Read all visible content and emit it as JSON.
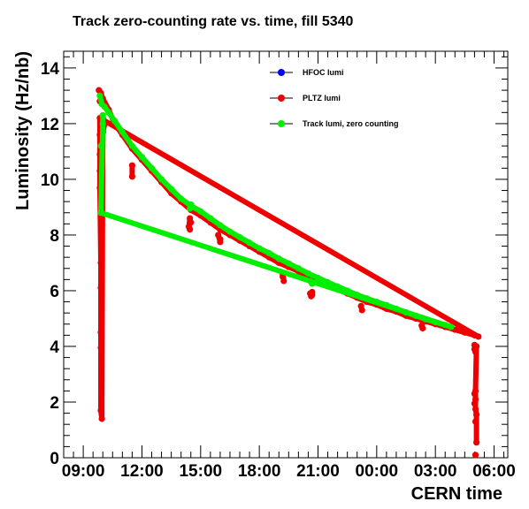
{
  "chart_data": {
    "type": "scatter",
    "title": "Track zero-counting rate vs. time, fill 5340",
    "xlabel": "CERN time",
    "ylabel": "Luminosity (Hz/nb)",
    "x_unit": "hours",
    "xlim": [
      8.0,
      30.7
    ],
    "ylim": [
      0,
      14.6
    ],
    "x_ticks": [
      {
        "value": 9,
        "label": "09:00"
      },
      {
        "value": 12,
        "label": "12:00"
      },
      {
        "value": 15,
        "label": "15:00"
      },
      {
        "value": 18,
        "label": "18:00"
      },
      {
        "value": 21,
        "label": "21:00"
      },
      {
        "value": 24,
        "label": "00:00"
      },
      {
        "value": 27,
        "label": "03:00"
      },
      {
        "value": 30,
        "label": "06:00"
      }
    ],
    "y_ticks": [
      {
        "value": 0,
        "label": "0"
      },
      {
        "value": 2,
        "label": "2"
      },
      {
        "value": 4,
        "label": "4"
      },
      {
        "value": 6,
        "label": "6"
      },
      {
        "value": 8,
        "label": "8"
      },
      {
        "value": 10,
        "label": "10"
      },
      {
        "value": 12,
        "label": "12"
      },
      {
        "value": 14,
        "label": "14"
      }
    ],
    "legend": "top-right",
    "series": [
      {
        "name": "HFOC lumi",
        "color": "#0000ff",
        "points": []
      },
      {
        "name": "PLTZ lumi",
        "color": "#ee0000",
        "points": [
          [
            9.8,
            13.2
          ],
          [
            9.9,
            13.1
          ],
          [
            10.0,
            12.9
          ],
          [
            10.3,
            12.5
          ],
          [
            10.6,
            12.0
          ],
          [
            11.0,
            11.6
          ],
          [
            11.5,
            11.1
          ],
          [
            12.0,
            10.7
          ],
          [
            12.5,
            10.3
          ],
          [
            13.0,
            9.9
          ],
          [
            13.5,
            9.5
          ],
          [
            14.0,
            9.2
          ],
          [
            14.5,
            8.9
          ],
          [
            15.0,
            8.7
          ],
          [
            15.5,
            8.45
          ],
          [
            16.0,
            8.2
          ],
          [
            16.5,
            8.0
          ],
          [
            17.0,
            7.8
          ],
          [
            17.5,
            7.6
          ],
          [
            18.0,
            7.4
          ],
          [
            18.5,
            7.2
          ],
          [
            19.0,
            7.0
          ],
          [
            19.5,
            6.85
          ],
          [
            20.0,
            6.7
          ],
          [
            20.5,
            6.5
          ],
          [
            21.0,
            6.35
          ],
          [
            21.5,
            6.2
          ],
          [
            22.0,
            6.05
          ],
          [
            22.5,
            5.9
          ],
          [
            23.0,
            5.75
          ],
          [
            23.5,
            5.6
          ],
          [
            24.0,
            5.5
          ],
          [
            24.5,
            5.35
          ],
          [
            25.0,
            5.25
          ],
          [
            25.5,
            5.1
          ],
          [
            26.0,
            5.0
          ],
          [
            26.5,
            4.9
          ],
          [
            27.0,
            4.8
          ],
          [
            27.5,
            4.7
          ],
          [
            28.0,
            4.6
          ],
          [
            28.5,
            4.5
          ],
          [
            29.0,
            4.4
          ],
          [
            29.2,
            4.35
          ],
          [
            9.85,
            12.8
          ],
          [
            9.85,
            12.2
          ],
          [
            9.85,
            11.6
          ],
          [
            9.85,
            10.9
          ],
          [
            9.85,
            10.3
          ],
          [
            9.85,
            9.7
          ],
          [
            9.9,
            7.0
          ],
          [
            9.9,
            6.1
          ],
          [
            9.9,
            4.5
          ],
          [
            9.9,
            3.95
          ],
          [
            9.9,
            1.7
          ],
          [
            9.95,
            1.4
          ],
          [
            10.0,
            12.2
          ],
          [
            10.0,
            11.7
          ],
          [
            10.1,
            12.0
          ],
          [
            11.5,
            10.1
          ],
          [
            11.5,
            10.5
          ],
          [
            14.4,
            8.3
          ],
          [
            14.45,
            8.6
          ],
          [
            14.5,
            8.45
          ],
          [
            14.45,
            8.2
          ],
          [
            15.9,
            8.0
          ],
          [
            16.0,
            7.75
          ],
          [
            16.0,
            7.85
          ],
          [
            19.2,
            6.6
          ],
          [
            19.25,
            6.35
          ],
          [
            19.2,
            6.5
          ],
          [
            20.6,
            5.9
          ],
          [
            20.65,
            5.8
          ],
          [
            20.7,
            5.95
          ],
          [
            20.7,
            5.85
          ],
          [
            23.2,
            5.45
          ],
          [
            23.25,
            5.3
          ],
          [
            26.3,
            4.75
          ],
          [
            26.35,
            4.65
          ],
          [
            29.0,
            3.9
          ],
          [
            29.05,
            3.8
          ],
          [
            29.1,
            4.0
          ],
          [
            29.0,
            4.05
          ],
          [
            29.05,
            2.4
          ],
          [
            29.0,
            2.3
          ],
          [
            29.05,
            2.1
          ],
          [
            29.0,
            1.95
          ],
          [
            29.05,
            1.75
          ],
          [
            29.1,
            1.55
          ],
          [
            29.05,
            1.3
          ],
          [
            29.1,
            0.55
          ],
          [
            29.05,
            0.1
          ]
        ]
      },
      {
        "name": "Track lumi, zero counting",
        "color": "#00ee00",
        "points": [
          [
            9.85,
            13.0
          ],
          [
            9.95,
            12.7
          ],
          [
            10.1,
            12.6
          ],
          [
            10.3,
            12.4
          ],
          [
            10.6,
            12.1
          ],
          [
            11.0,
            11.7
          ],
          [
            11.5,
            11.2
          ],
          [
            12.0,
            10.8
          ],
          [
            12.5,
            10.4
          ],
          [
            13.0,
            10.0
          ],
          [
            13.5,
            9.65
          ],
          [
            14.0,
            9.3
          ],
          [
            14.5,
            9.05
          ],
          [
            15.0,
            8.85
          ],
          [
            15.5,
            8.6
          ],
          [
            16.0,
            8.35
          ],
          [
            16.5,
            8.12
          ],
          [
            17.0,
            7.92
          ],
          [
            17.5,
            7.72
          ],
          [
            18.0,
            7.52
          ],
          [
            18.5,
            7.35
          ],
          [
            19.0,
            7.15
          ],
          [
            19.5,
            6.98
          ],
          [
            20.0,
            6.8
          ],
          [
            20.5,
            6.62
          ],
          [
            21.0,
            6.46
          ],
          [
            21.5,
            6.3
          ],
          [
            22.0,
            6.15
          ],
          [
            22.5,
            6.0
          ],
          [
            23.0,
            5.85
          ],
          [
            23.5,
            5.72
          ],
          [
            24.0,
            5.6
          ],
          [
            24.5,
            5.48
          ],
          [
            25.0,
            5.35
          ],
          [
            25.5,
            5.22
          ],
          [
            26.0,
            5.1
          ],
          [
            26.5,
            4.98
          ],
          [
            27.0,
            4.87
          ],
          [
            27.5,
            4.77
          ],
          [
            27.8,
            4.7
          ],
          [
            9.9,
            11.2
          ],
          [
            9.9,
            8.8
          ],
          [
            10.0,
            12.0
          ],
          [
            10.0,
            12.3
          ],
          [
            14.45,
            8.95
          ],
          [
            14.5,
            9.1
          ],
          [
            20.6,
            6.35
          ],
          [
            20.7,
            6.25
          ]
        ]
      }
    ]
  }
}
